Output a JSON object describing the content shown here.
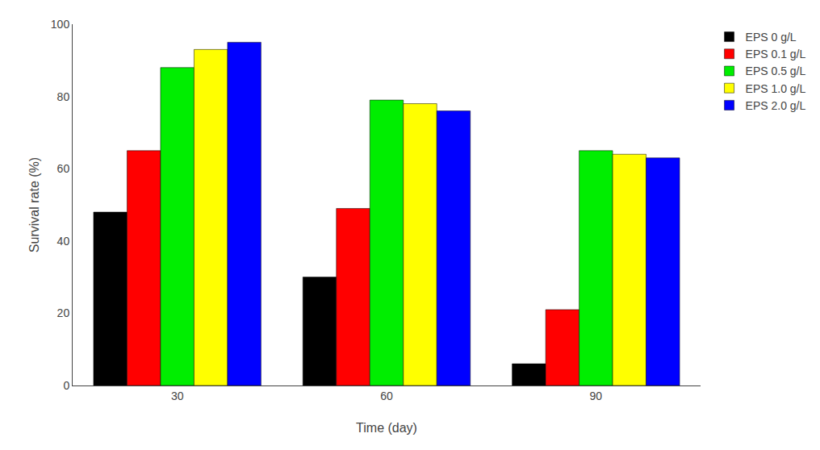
{
  "chart_data": {
    "type": "bar",
    "categories": [
      "30",
      "60",
      "90"
    ],
    "series": [
      {
        "name": "EPS 0 g/L",
        "color": "#000000",
        "values": [
          48,
          30,
          6
        ]
      },
      {
        "name": "EPS 0.1 g/L",
        "color": "#ff0000",
        "values": [
          65,
          49,
          21
        ]
      },
      {
        "name": "EPS 0.5 g/L",
        "color": "#00ee00",
        "values": [
          88,
          79,
          65
        ]
      },
      {
        "name": "EPS 1.0 g/L",
        "color": "#ffff00",
        "values": [
          93,
          78,
          64
        ]
      },
      {
        "name": "EPS 2.0 g/L",
        "color": "#0000ff",
        "values": [
          95,
          76,
          63
        ]
      }
    ],
    "xlabel": "Time (day)",
    "ylabel": "Survival rate (%)",
    "ylim": [
      0,
      100
    ],
    "yticks": [
      0,
      20,
      40,
      60,
      80,
      100
    ],
    "grid": false,
    "legend": "right"
  }
}
